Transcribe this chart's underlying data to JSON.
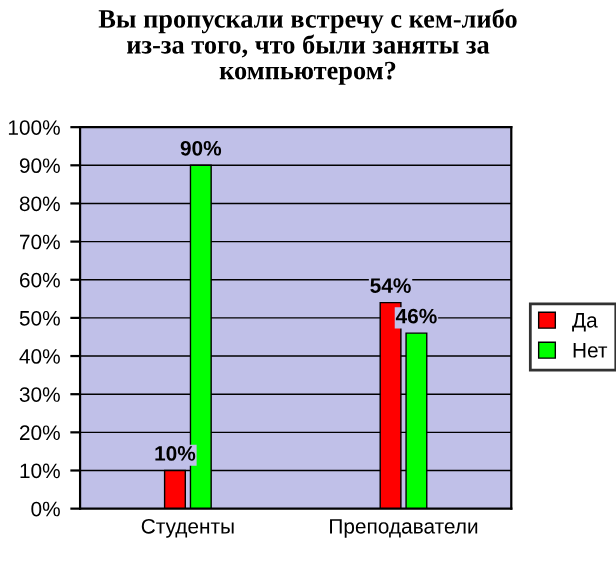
{
  "chart_data": {
    "type": "bar",
    "title": "Вы пропускали встречу с кем-либо\nиз-за того, что были заняты за\nкомпьютером?",
    "categories": [
      "Студенты",
      "Преподаватели"
    ],
    "series": [
      {
        "name": "Да",
        "color": "#ff0000",
        "values": [
          10,
          54
        ],
        "value_labels": [
          "10%",
          "54%"
        ]
      },
      {
        "name": "Нет",
        "color": "#00ff00",
        "values": [
          90,
          46
        ],
        "value_labels": [
          "90%",
          "46%"
        ]
      }
    ],
    "ylim": [
      0,
      100
    ],
    "yticks": [
      {
        "value": 0,
        "label": "0%"
      },
      {
        "value": 10,
        "label": "10%"
      },
      {
        "value": 20,
        "label": "20%"
      },
      {
        "value": 30,
        "label": "30%"
      },
      {
        "value": 40,
        "label": "40%"
      },
      {
        "value": 50,
        "label": "50%"
      },
      {
        "value": 60,
        "label": "60%"
      },
      {
        "value": 70,
        "label": "70%"
      },
      {
        "value": 80,
        "label": "80%"
      },
      {
        "value": 90,
        "label": "90%"
      },
      {
        "value": 100,
        "label": "100%"
      }
    ],
    "grid": "y",
    "legend": "right"
  }
}
